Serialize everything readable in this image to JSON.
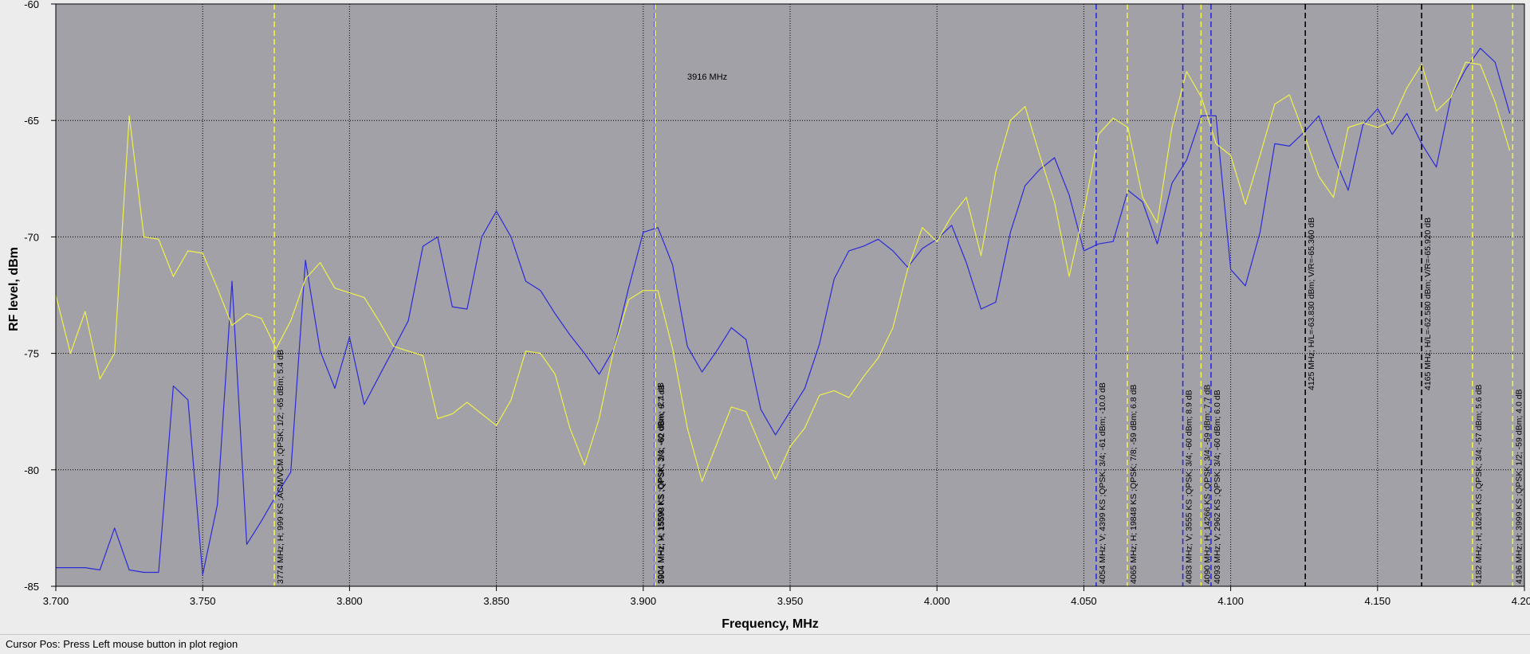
{
  "status_bar": {
    "text": "Cursor Pos: Press Left mouse button in plot region"
  },
  "colors": {
    "plot_background": "#a2a1a8",
    "horizontal_trace": "#2b2bd8",
    "vertical_trace": "#f0f04a",
    "grid": "#000000",
    "marker_black": "#000000"
  },
  "chart_data": {
    "type": "line",
    "title": "",
    "xlabel": "Frequency, MHz",
    "ylabel": "RF level, dBm",
    "xlim": [
      3.7,
      4.2
    ],
    "ylim": [
      -85,
      -60
    ],
    "x_ticks": [
      "3.700",
      "3.750",
      "3.800",
      "3.850",
      "3.900",
      "3.950",
      "4.000",
      "4.050",
      "4.100",
      "4.150",
      "4.200"
    ],
    "y_ticks": [
      "-60",
      "-65",
      "-70",
      "-75",
      "-80",
      "-85"
    ],
    "x_tick_values": [
      3.7,
      3.75,
      3.8,
      3.85,
      3.9,
      3.95,
      4.0,
      4.05,
      4.1,
      4.15,
      4.2
    ],
    "y_tick_values": [
      -60,
      -65,
      -70,
      -75,
      -80,
      -85
    ],
    "grid": true,
    "center_label": "3916 MHz",
    "series": [
      {
        "color": "#2b2bd8",
        "x": [
          3.7,
          3.705,
          3.71,
          3.715,
          3.72,
          3.725,
          3.73,
          3.735,
          3.74,
          3.745,
          3.75,
          3.755,
          3.76,
          3.765,
          3.77,
          3.775,
          3.78,
          3.785,
          3.79,
          3.795,
          3.8,
          3.805,
          3.81,
          3.815,
          3.82,
          3.825,
          3.83,
          3.835,
          3.84,
          3.845,
          3.85,
          3.855,
          3.86,
          3.865,
          3.87,
          3.875,
          3.88,
          3.885,
          3.89,
          3.895,
          3.9,
          3.905,
          3.91,
          3.915,
          3.92,
          3.925,
          3.93,
          3.935,
          3.94,
          3.945,
          3.95,
          3.955,
          3.96,
          3.965,
          3.97,
          3.975,
          3.98,
          3.985,
          3.99,
          3.995,
          4.0,
          4.005,
          4.01,
          4.015,
          4.02,
          4.025,
          4.03,
          4.035,
          4.04,
          4.045,
          4.05,
          4.055,
          4.06,
          4.065,
          4.07,
          4.075,
          4.08,
          4.085,
          4.09,
          4.095,
          4.1,
          4.105,
          4.11,
          4.115,
          4.12,
          4.125,
          4.13,
          4.135,
          4.14,
          4.145,
          4.15,
          4.155,
          4.16,
          4.165,
          4.17,
          4.175,
          4.18,
          4.185,
          4.19,
          4.195
        ],
        "values": [
          -84.2,
          -84.2,
          -84.2,
          -84.3,
          -82.5,
          -84.3,
          -84.4,
          -84.4,
          -76.4,
          -77.0,
          -84.5,
          -81.5,
          -71.9,
          -83.2,
          -82.2,
          -81.1,
          -80.1,
          -71.0,
          -74.9,
          -76.5,
          -74.3,
          -77.2,
          -76.0,
          -74.8,
          -73.6,
          -70.4,
          -70.0,
          -73.0,
          -73.1,
          -70.0,
          -68.9,
          -70.0,
          -71.9,
          -72.3,
          -73.3,
          -74.2,
          -75.0,
          -75.9,
          -74.8,
          -72.2,
          -69.8,
          -69.6,
          -71.2,
          -74.7,
          -75.8,
          -74.9,
          -73.9,
          -74.4,
          -77.4,
          -78.5,
          -77.5,
          -76.5,
          -74.6,
          -71.8,
          -70.6,
          -70.4,
          -70.1,
          -70.6,
          -71.3,
          -70.5,
          -70.1,
          -69.5,
          -71.1,
          -73.1,
          -72.8,
          -69.8,
          -67.8,
          -67.1,
          -66.6,
          -68.2,
          -70.6,
          -70.3,
          -70.2,
          -68.0,
          -68.5,
          -70.3,
          -67.7,
          -66.7,
          -64.8,
          -64.8,
          -71.4,
          -72.1,
          -69.8,
          -66.0,
          -66.1,
          -65.5,
          -64.8,
          -66.5,
          -68.0,
          -65.2,
          -64.5,
          -65.6,
          -64.7,
          -66.0,
          -67.0,
          -64.0,
          -62.8,
          -61.9,
          -62.5,
          -64.7
        ]
      },
      {
        "color": "#f0f04a",
        "x": [
          3.7,
          3.705,
          3.71,
          3.715,
          3.72,
          3.725,
          3.73,
          3.735,
          3.74,
          3.745,
          3.75,
          3.755,
          3.76,
          3.765,
          3.77,
          3.775,
          3.78,
          3.785,
          3.79,
          3.795,
          3.8,
          3.805,
          3.81,
          3.815,
          3.82,
          3.825,
          3.83,
          3.835,
          3.84,
          3.845,
          3.85,
          3.855,
          3.86,
          3.865,
          3.87,
          3.875,
          3.88,
          3.885,
          3.89,
          3.895,
          3.9,
          3.905,
          3.91,
          3.915,
          3.92,
          3.925,
          3.93,
          3.935,
          3.94,
          3.945,
          3.95,
          3.955,
          3.96,
          3.965,
          3.97,
          3.975,
          3.98,
          3.985,
          3.99,
          3.995,
          4.0,
          4.005,
          4.01,
          4.015,
          4.02,
          4.025,
          4.03,
          4.035,
          4.04,
          4.045,
          4.05,
          4.055,
          4.06,
          4.065,
          4.07,
          4.075,
          4.08,
          4.085,
          4.09,
          4.095,
          4.1,
          4.105,
          4.11,
          4.115,
          4.12,
          4.125,
          4.13,
          4.135,
          4.14,
          4.145,
          4.15,
          4.155,
          4.16,
          4.165,
          4.17,
          4.175,
          4.18,
          4.185,
          4.19,
          4.195
        ],
        "values": [
          -72.5,
          -75.0,
          -73.2,
          -76.1,
          -75.0,
          -64.8,
          -70.0,
          -70.1,
          -71.7,
          -70.6,
          -70.7,
          -72.2,
          -73.8,
          -73.3,
          -73.5,
          -74.8,
          -73.6,
          -71.8,
          -71.1,
          -72.2,
          -72.4,
          -72.6,
          -73.6,
          -74.7,
          -74.9,
          -75.1,
          -77.8,
          -77.6,
          -77.1,
          -77.6,
          -78.1,
          -77.0,
          -74.9,
          -75.0,
          -75.9,
          -78.2,
          -79.8,
          -77.8,
          -74.8,
          -72.7,
          -72.3,
          -72.3,
          -74.8,
          -78.2,
          -80.5,
          -78.9,
          -77.3,
          -77.5,
          -79.0,
          -80.4,
          -79.0,
          -78.2,
          -76.8,
          -76.6,
          -76.9,
          -76.0,
          -75.2,
          -73.9,
          -71.4,
          -69.6,
          -70.2,
          -69.1,
          -68.3,
          -70.8,
          -67.2,
          -65.0,
          -64.4,
          -66.5,
          -68.5,
          -71.7,
          -68.9,
          -65.6,
          -64.9,
          -65.3,
          -68.3,
          -69.4,
          -65.3,
          -62.9,
          -64.0,
          -66.0,
          -66.5,
          -68.6,
          -66.5,
          -64.3,
          -63.9,
          -65.6,
          -67.4,
          -68.3,
          -65.3,
          -65.1,
          -65.3,
          -65.0,
          -63.6,
          -62.6,
          -64.6,
          -64.0,
          -62.5,
          -62.6,
          -64.2,
          -66.3
        ]
      }
    ],
    "markers": [
      {
        "x": 3.7744,
        "color": "#f0f04a",
        "label": "3774 MHz; H; 999 KS ;ACM/VCM ;QPSK; 1/2; -65 dBm; 5.4 dB"
      },
      {
        "x": 3.9039,
        "color": "#2b2bd8",
        "label": "3904 MHz; V; 15590 KS ;QPSK; 3/4; -60 dBm; -2.1 dB"
      },
      {
        "x": 3.9041,
        "color": "#f0f04a",
        "label": "3904 MHz; H; 15598 KS ;QPSK; 2/3; -62 dBm; 8.7 dB"
      },
      {
        "x": 4.0542,
        "color": "#2b2bd8",
        "label": "4054 MHz; V; 4399 KS ;QPSK; 3/4; -61 dBm; -10.0 dB"
      },
      {
        "x": 4.0648,
        "color": "#f0f04a",
        "label": "4065 MHz; H; 19848 KS ;QPSK; 7/8; -59 dBm; 6.8 dB"
      },
      {
        "x": 4.0837,
        "color": "#2b2bd8",
        "label": "4083 MHz; V; 3555 KS ;QPSK; 3/4; -60 dBm; 8.9 dB"
      },
      {
        "x": 4.0899,
        "color": "#f0f04a",
        "label": "4090 MHz; H; 14266 KS ;QPSK; 3/4; -59 dBm; 7.7 dB"
      },
      {
        "x": 4.0933,
        "color": "#2b2bd8",
        "label": "4093 MHz; V; 2962 KS ;QPSK; 3/4; -60 dBm; 6.0 dB"
      },
      {
        "x": 4.1254,
        "color": "#000000",
        "label": "4125 MHz;   H/L=-63.830 dBm;  V/R=-65.360 dB"
      },
      {
        "x": 4.165,
        "color": "#000000",
        "label": "4165 MHz;   H/L=-62.580 dBm;  V/R=-65.920 dB"
      },
      {
        "x": 4.1823,
        "color": "#f0f04a",
        "label": "4182 MHz; H; 16294 KS ;QPSK; 3/4; -57 dBm; 5.6 dB"
      },
      {
        "x": 4.196,
        "color": "#f0f04a",
        "label": "4196 MHz; H; 3999 KS ;QPSK; 1/2; -59 dBm; 4.0 dB"
      }
    ]
  }
}
